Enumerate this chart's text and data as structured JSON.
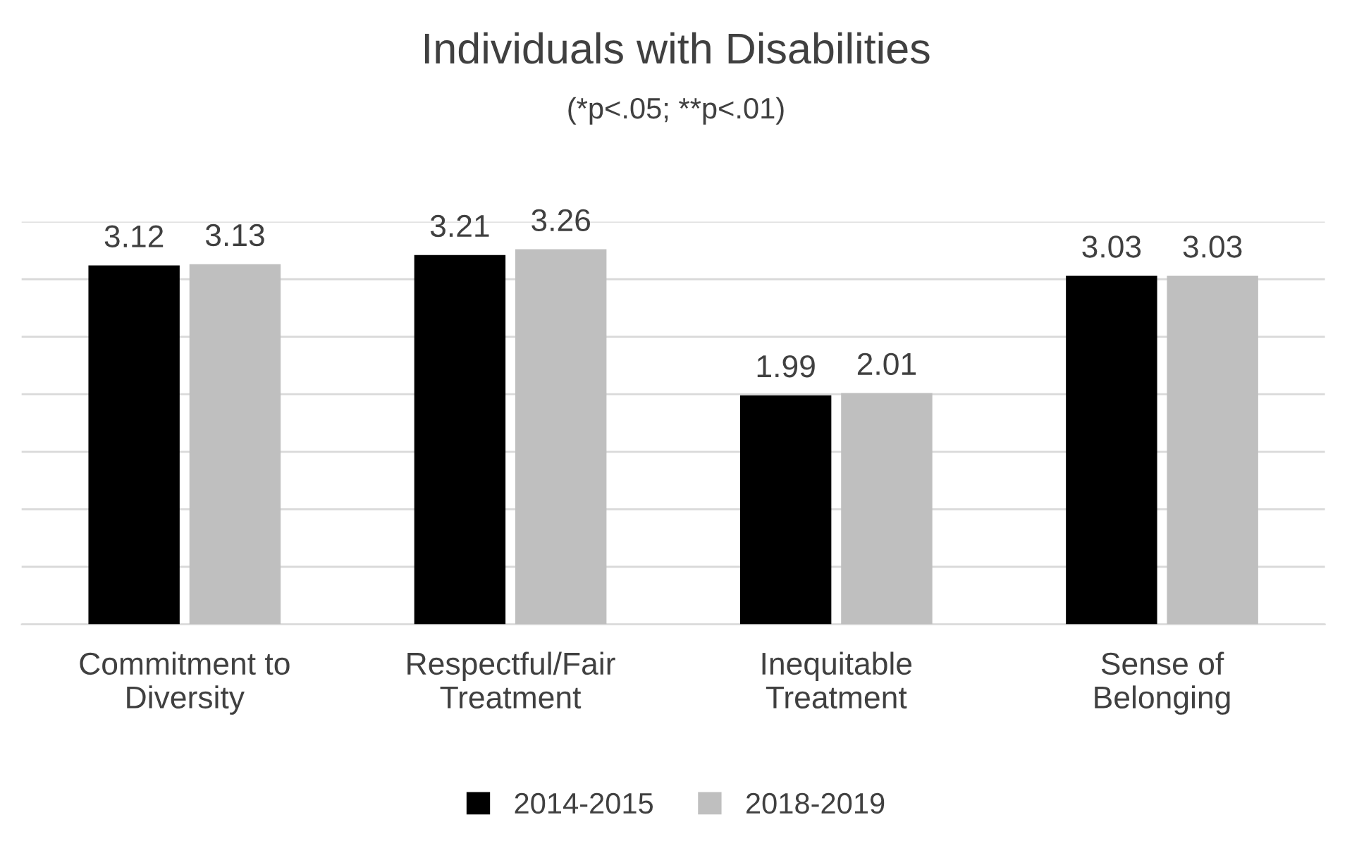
{
  "chart_data": {
    "type": "bar",
    "title": "Individuals with Disabilities",
    "subtitle": "(*p<.05; **p<.01)",
    "categories": [
      "Commitment to\nDiversity",
      "Respectful/Fair\nTreatment",
      "Inequitable\nTreatment",
      "Sense of\nBelonging"
    ],
    "series": [
      {
        "name": "2014-2015",
        "color": "#000000",
        "values": [
          3.12,
          3.21,
          1.99,
          3.03
        ]
      },
      {
        "name": "2018-2019",
        "color": "#bfbfbf",
        "values": [
          3.13,
          3.26,
          2.01,
          3.03
        ]
      }
    ],
    "ylim": [
      0,
      3.5
    ],
    "yticks": [
      {
        "value": 0,
        "label": null
      },
      {
        "value": 0.5,
        "label": null
      },
      {
        "value": 1,
        "label": null
      },
      {
        "value": 1.5,
        "label": null
      },
      {
        "value": 2,
        "label": null
      },
      {
        "value": 2.5,
        "label": null
      },
      {
        "value": 3,
        "label": null
      },
      {
        "value": 3.5,
        "label": null
      }
    ],
    "tick_labels": "x",
    "grid": "y",
    "legend": "bottom",
    "data_labels": true
  }
}
